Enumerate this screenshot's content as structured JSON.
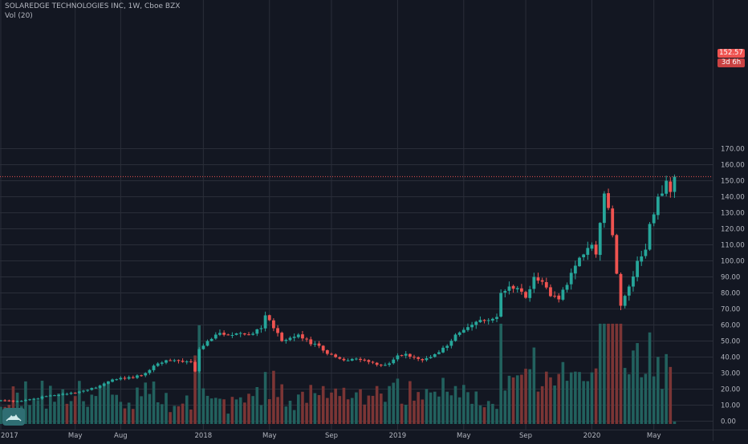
{
  "legend": {
    "symbol_line": "SOLAREDGE TECHNOLOGIES INC, 1W, Cboe BZX",
    "volume_line": "Vol (20)"
  },
  "price_label": {
    "value": "152.57",
    "countdown": "3d 6h",
    "color": "#ef5350"
  },
  "colors": {
    "background": "#131722",
    "grid": "#2a2e39",
    "up": "#26a69a",
    "down": "#ef5350",
    "volume_up": "#22615e",
    "volume_down": "#7b3535",
    "axis_text": "#b2b5be"
  },
  "logo_icon": "tradingview-cloud-icon",
  "chart_data": {
    "type": "candlestick",
    "title": "SOLAREDGE TECHNOLOGIES INC, 1W, Cboe BZX",
    "volume_title": "Vol (20)",
    "x_tick_labels": [
      "2017",
      "May",
      "Aug",
      "2018",
      "May",
      "Sep",
      "2019",
      "May",
      "Sep",
      "2020",
      "May"
    ],
    "x_tick_week_index": [
      0,
      18,
      29,
      49,
      65,
      80,
      96,
      112,
      127,
      143,
      158
    ],
    "y_ticks": [
      "170.00",
      "160.00",
      "150.00",
      "140.00",
      "130.00",
      "120.00",
      "110.00",
      "100.00",
      "90.00",
      "80.00",
      "70.00",
      "60.00",
      "50.00",
      "40.00",
      "30.00",
      "20.00",
      "10.00",
      "0.00"
    ],
    "price_range": [
      0,
      170
    ],
    "volume_range_millions": [
      0,
      45
    ],
    "grid": true,
    "last_price": 152.57,
    "weeks_per_year": 52,
    "close_anchors": [
      [
        0,
        13
      ],
      [
        4,
        12.5
      ],
      [
        8,
        14
      ],
      [
        12,
        16
      ],
      [
        16,
        17
      ],
      [
        20,
        19
      ],
      [
        24,
        22
      ],
      [
        27,
        26
      ],
      [
        29,
        27
      ],
      [
        32,
        27
      ],
      [
        35,
        30
      ],
      [
        38,
        36
      ],
      [
        40,
        38
      ],
      [
        42,
        38
      ],
      [
        44,
        37
      ],
      [
        46,
        37
      ],
      [
        47,
        31
      ],
      [
        48,
        45
      ],
      [
        50,
        50
      ],
      [
        52,
        54
      ],
      [
        55,
        54
      ],
      [
        58,
        55
      ],
      [
        60,
        54
      ],
      [
        63,
        58
      ],
      [
        64,
        66
      ],
      [
        65,
        63
      ],
      [
        66,
        58
      ],
      [
        67,
        55
      ],
      [
        68,
        50
      ],
      [
        70,
        52
      ],
      [
        72,
        54
      ],
      [
        74,
        51
      ],
      [
        75,
        48
      ],
      [
        77,
        47
      ],
      [
        79,
        42
      ],
      [
        81,
        40
      ],
      [
        83,
        38
      ],
      [
        86,
        39
      ],
      [
        89,
        37
      ],
      [
        92,
        35
      ],
      [
        94,
        36
      ],
      [
        96,
        41
      ],
      [
        98,
        42
      ],
      [
        100,
        40
      ],
      [
        102,
        38
      ],
      [
        104,
        40
      ],
      [
        106,
        43
      ],
      [
        108,
        47
      ],
      [
        110,
        54
      ],
      [
        112,
        57
      ],
      [
        115,
        62
      ],
      [
        118,
        63
      ],
      [
        120,
        65
      ],
      [
        121,
        80
      ],
      [
        123,
        84
      ],
      [
        125,
        83
      ],
      [
        127,
        77
      ],
      [
        129,
        90
      ],
      [
        131,
        87
      ],
      [
        133,
        78
      ],
      [
        135,
        76
      ],
      [
        137,
        85
      ],
      [
        139,
        97
      ],
      [
        141,
        104
      ],
      [
        143,
        110
      ],
      [
        144,
        104
      ],
      [
        146,
        142
      ],
      [
        147,
        133
      ],
      [
        148,
        116
      ],
      [
        149,
        92
      ],
      [
        150,
        72
      ],
      [
        152,
        84
      ],
      [
        154,
        100
      ],
      [
        156,
        107
      ],
      [
        157,
        123
      ],
      [
        158,
        129
      ],
      [
        159,
        140
      ],
      [
        160,
        142
      ],
      [
        161,
        150
      ],
      [
        162,
        143
      ],
      [
        163,
        152.57
      ]
    ]
  }
}
